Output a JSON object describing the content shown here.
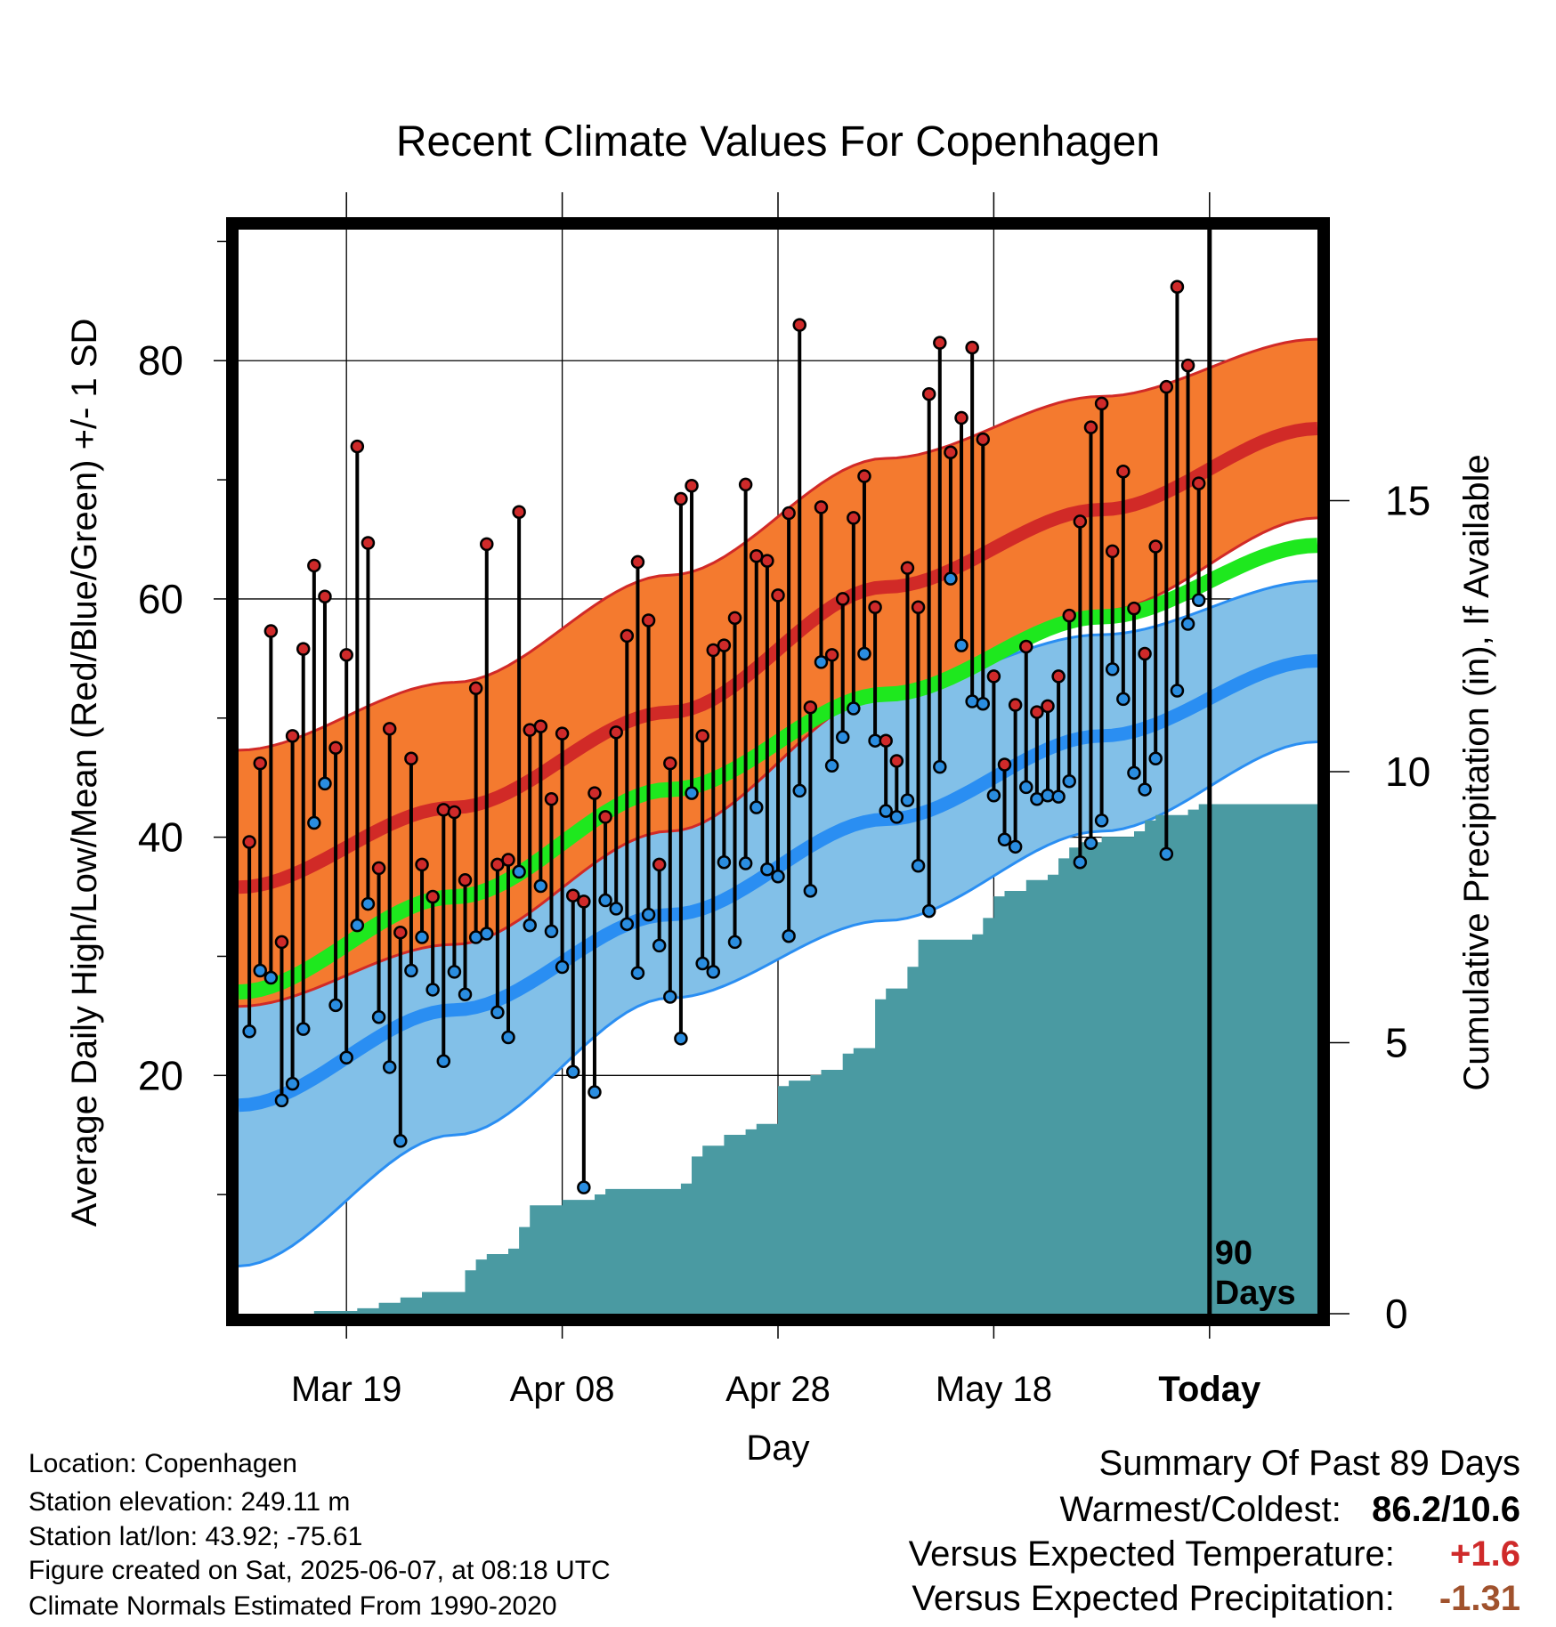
{
  "chart_data": {
    "type": "line",
    "title": "Recent Climate Values For Copenhagen",
    "xlabel": "Day",
    "ylabel": "Average Daily High/Low/Mean (Red/Blue/Green) +/- 1 SD",
    "y2label": "Cumulative Precipitation (in), If Available",
    "x_tick_labels": [
      "Mar 19",
      "Apr 08",
      "Apr 28",
      "May 18",
      "Today"
    ],
    "x_tick_days": [
      10,
      30,
      50,
      70,
      90
    ],
    "x_range": [
      0,
      100
    ],
    "ylim": [
      0,
      91
    ],
    "y_ticks": [
      20,
      40,
      60,
      80
    ],
    "y2lim": [
      0,
      20
    ],
    "y2_ticks": [
      0,
      5,
      10,
      15
    ],
    "today_marker_label": "90\nDays",
    "normals": {
      "high_mean": [
        [
          0,
          35.8
        ],
        [
          20,
          42.5
        ],
        [
          40,
          50.5
        ],
        [
          60,
          61
        ],
        [
          80,
          67.5
        ],
        [
          100,
          74.3
        ]
      ],
      "high_upper": [
        [
          0,
          47.3
        ],
        [
          20,
          53
        ],
        [
          40,
          62
        ],
        [
          60,
          71.8
        ],
        [
          80,
          77
        ],
        [
          100,
          81.8
        ]
      ],
      "high_lower": [
        [
          0,
          25.8
        ],
        [
          20,
          31
        ],
        [
          40,
          40.5
        ],
        [
          60,
          52
        ],
        [
          80,
          59
        ],
        [
          100,
          66.8
        ]
      ],
      "mean_normal": [
        [
          0,
          27
        ],
        [
          20,
          35
        ],
        [
          40,
          44
        ],
        [
          60,
          52
        ],
        [
          80,
          58.5
        ],
        [
          100,
          64.5
        ]
      ],
      "low_mean": [
        [
          0,
          17.5
        ],
        [
          20,
          25.5
        ],
        [
          40,
          33.5
        ],
        [
          60,
          41.5
        ],
        [
          80,
          48.5
        ],
        [
          100,
          54.8
        ]
      ],
      "low_upper": [
        [
          0,
          29.5
        ],
        [
          20,
          35.5
        ],
        [
          40,
          44.5
        ],
        [
          60,
          52.5
        ],
        [
          80,
          57
        ],
        [
          100,
          61.5
        ]
      ],
      "low_lower": [
        [
          0,
          4
        ],
        [
          20,
          15
        ],
        [
          40,
          26.5
        ],
        [
          60,
          33
        ],
        [
          80,
          40.5
        ],
        [
          100,
          48
        ]
      ]
    },
    "series": [
      {
        "name": "High",
        "values": [
          39.6,
          46.2,
          57.3,
          31.2,
          48.5,
          55.8,
          62.8,
          60.2,
          47.5,
          55.3,
          72.8,
          64.7,
          37.4,
          49.1,
          32.0,
          46.6,
          37.7,
          35.0,
          42.3,
          42.1,
          36.4,
          52.5,
          64.6,
          37.7,
          38.1,
          67.3,
          49.0,
          49.3,
          43.2,
          48.7,
          35.1,
          34.6,
          43.7,
          41.7,
          48.8,
          56.9,
          63.1,
          58.2,
          37.7,
          46.2,
          68.4,
          69.5,
          48.5,
          55.7,
          56.1,
          58.4,
          69.6,
          63.6,
          63.2,
          60.3,
          67.2,
          83.0,
          50.9,
          67.7,
          55.3,
          60.0,
          66.8,
          70.3,
          59.3,
          48.1,
          46.4,
          62.6,
          59.3,
          77.2,
          81.5,
          72.3,
          75.2,
          81.1,
          73.4,
          53.5,
          46.1,
          51.1,
          56.0,
          50.5,
          51.0,
          53.5,
          58.6,
          66.5,
          74.4,
          76.4,
          64.0,
          70.7,
          59.2,
          55.4,
          64.4,
          77.8,
          86.2,
          79.6,
          69.7
        ]
      },
      {
        "name": "Low",
        "values": [
          23.7,
          28.8,
          28.2,
          17.9,
          19.3,
          23.9,
          41.2,
          44.5,
          25.9,
          21.5,
          32.6,
          34.4,
          24.9,
          20.7,
          14.5,
          28.8,
          31.6,
          27.2,
          21.2,
          28.7,
          26.8,
          31.6,
          31.9,
          25.3,
          23.2,
          37.1,
          32.6,
          35.9,
          32.1,
          29.1,
          20.3,
          10.6,
          18.6,
          34.7,
          34.0,
          32.7,
          28.6,
          33.5,
          30.9,
          26.6,
          23.1,
          43.7,
          29.4,
          28.7,
          37.9,
          31.2,
          37.8,
          42.5,
          37.3,
          36.7,
          31.7,
          43.9,
          35.5,
          54.7,
          46.0,
          48.4,
          50.8,
          55.4,
          48.1,
          42.2,
          41.7,
          43.1,
          37.6,
          33.8,
          45.9,
          61.7,
          56.1,
          51.4,
          51.2,
          43.5,
          39.8,
          39.2,
          44.2,
          43.2,
          43.5,
          43.4,
          44.7,
          37.9,
          39.5,
          41.4,
          54.1,
          51.6,
          45.4,
          44.0,
          46.6,
          38.6,
          52.3,
          57.9,
          59.9
        ]
      }
    ],
    "precip_cumulative": [
      [
        0,
        0
      ],
      [
        5,
        0
      ],
      [
        7,
        0.05
      ],
      [
        9,
        0.05
      ],
      [
        11,
        0.1
      ],
      [
        12,
        0.1
      ],
      [
        13,
        0.2
      ],
      [
        15,
        0.3
      ],
      [
        17,
        0.4
      ],
      [
        19,
        0.4
      ],
      [
        20,
        0.4
      ],
      [
        21,
        0.8
      ],
      [
        22,
        1.0
      ],
      [
        23,
        1.1
      ],
      [
        24,
        1.1
      ],
      [
        25,
        1.2
      ],
      [
        26,
        1.6
      ],
      [
        27,
        2.0
      ],
      [
        28,
        2.0
      ],
      [
        30,
        2.1
      ],
      [
        32,
        2.1
      ],
      [
        33,
        2.2
      ],
      [
        34,
        2.3
      ],
      [
        36,
        2.3
      ],
      [
        38,
        2.3
      ],
      [
        40,
        2.3
      ],
      [
        41,
        2.4
      ],
      [
        42,
        2.9
      ],
      [
        43,
        3.1
      ],
      [
        44,
        3.1
      ],
      [
        45,
        3.3
      ],
      [
        46,
        3.3
      ],
      [
        47,
        3.4
      ],
      [
        48,
        3.5
      ],
      [
        49,
        3.5
      ],
      [
        50,
        4.2
      ],
      [
        51,
        4.3
      ],
      [
        52,
        4.3
      ],
      [
        53,
        4.4
      ],
      [
        54,
        4.5
      ],
      [
        55,
        4.5
      ],
      [
        56,
        4.8
      ],
      [
        57,
        4.9
      ],
      [
        58,
        4.9
      ],
      [
        59,
        5.8
      ],
      [
        60,
        6.0
      ],
      [
        61,
        6.0
      ],
      [
        62,
        6.4
      ],
      [
        63,
        6.9
      ],
      [
        64,
        6.9
      ],
      [
        65,
        6.9
      ],
      [
        66,
        6.9
      ],
      [
        67,
        6.9
      ],
      [
        68,
        7.0
      ],
      [
        69,
        7.3
      ],
      [
        70,
        7.7
      ],
      [
        71,
        7.8
      ],
      [
        72,
        7.8
      ],
      [
        73,
        8.0
      ],
      [
        74,
        8.0
      ],
      [
        75,
        8.1
      ],
      [
        76,
        8.4
      ],
      [
        77,
        8.6
      ],
      [
        78,
        8.7
      ],
      [
        79,
        8.7
      ],
      [
        80,
        8.8
      ],
      [
        81,
        8.8
      ],
      [
        82,
        8.8
      ],
      [
        83,
        8.9
      ],
      [
        84,
        9.1
      ],
      [
        85,
        9.2
      ],
      [
        86,
        9.2
      ],
      [
        87,
        9.2
      ],
      [
        88,
        9.3
      ],
      [
        89,
        9.4
      ],
      [
        90,
        9.4
      ],
      [
        100,
        9.4
      ]
    ],
    "grid": true,
    "colors": {
      "high_band": "#f47a2f",
      "high_line": "#d12a27",
      "low_band": "#82c0e8",
      "low_line": "#2a8ef2",
      "mean_line": "#1ee81e",
      "precip_fill": "#4a9aa2",
      "high_marker": "#cf2a2a",
      "low_marker": "#2a8de0"
    }
  },
  "info": {
    "location": "Location: Copenhagen",
    "elevation": "Station elevation: 249.11 m",
    "latlon": "Station lat/lon: 43.92; -75.61",
    "created": "Figure created on Sat, 2025-06-07, at 08:18 UTC",
    "normals": "Climate Normals Estimated From 1990-2020"
  },
  "summary": {
    "title": "Summary Of Past 89 Days",
    "warmest_coldest_label": "Warmest/Coldest:",
    "warmest_coldest_value": "86.2/10.6",
    "temp_label": "Versus Expected Temperature:",
    "temp_value": "+1.6",
    "temp_color": "#cf2a2a",
    "precip_label": "Versus Expected Precipitation:",
    "precip_value": "-1.31",
    "precip_color": "#a0522d"
  }
}
